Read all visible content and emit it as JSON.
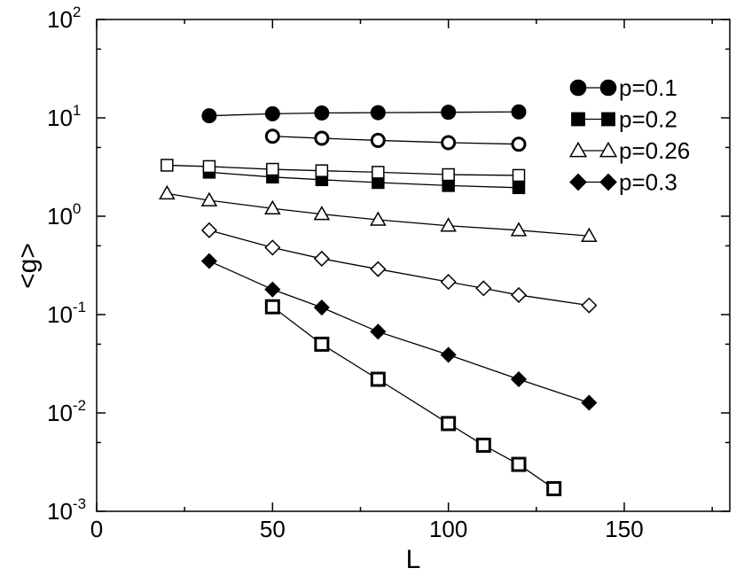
{
  "chart_data": {
    "type": "scatter",
    "title": "",
    "xlabel": "L",
    "ylabel": "<g>",
    "xlim": [
      0,
      180
    ],
    "ylim": [
      0.001,
      100
    ],
    "yscale": "log",
    "xticks": [
      {
        "value": 0,
        "label": "0"
      },
      {
        "value": 50,
        "label": "50"
      },
      {
        "value": 100,
        "label": "100"
      },
      {
        "value": 150,
        "label": "150"
      }
    ],
    "yticks": [
      {
        "value": 0.001,
        "base": "10",
        "exp": "-3"
      },
      {
        "value": 0.01,
        "base": "10",
        "exp": "-2"
      },
      {
        "value": 0.1,
        "base": "10",
        "exp": "-1"
      },
      {
        "value": 1,
        "base": "10",
        "exp": "0"
      },
      {
        "value": 10,
        "base": "10",
        "exp": "1"
      },
      {
        "value": 100,
        "base": "10",
        "exp": "2"
      }
    ],
    "legend_position": "top-right",
    "grid": false,
    "series": [
      {
        "name": "p=0.1",
        "marker": "circle",
        "filled": true,
        "legend": true,
        "x": [
          32,
          50,
          64,
          80,
          100,
          120
        ],
        "y": [
          10.5,
          11.0,
          11.2,
          11.3,
          11.4,
          11.5
        ]
      },
      {
        "marker": "circle",
        "filled": false,
        "legend": false,
        "x": [
          50,
          64,
          80,
          100,
          120
        ],
        "y": [
          6.5,
          6.2,
          5.9,
          5.6,
          5.4
        ]
      },
      {
        "name": "p=0.2",
        "marker": "square",
        "filled": true,
        "legend": true,
        "x": [
          32,
          50,
          64,
          80,
          100,
          120
        ],
        "y": [
          2.8,
          2.5,
          2.35,
          2.2,
          2.05,
          1.95
        ]
      },
      {
        "marker": "square",
        "filled": false,
        "legend": false,
        "x": [
          20,
          32,
          50,
          64,
          80,
          100,
          120
        ],
        "y": [
          3.3,
          3.2,
          3.0,
          2.9,
          2.8,
          2.65,
          2.6
        ]
      },
      {
        "name": "p=0.26",
        "marker": "triangle",
        "filled": false,
        "legend": true,
        "x": [
          20,
          32,
          50,
          64,
          80,
          100,
          120,
          140
        ],
        "y": [
          1.7,
          1.45,
          1.2,
          1.05,
          0.92,
          0.8,
          0.72,
          0.63
        ]
      },
      {
        "marker": "diamond",
        "filled": false,
        "legend": false,
        "x": [
          32,
          50,
          64,
          80,
          100,
          110,
          120,
          140
        ],
        "y": [
          0.72,
          0.48,
          0.37,
          0.29,
          0.215,
          0.185,
          0.158,
          0.124
        ]
      },
      {
        "name": "p=0.3",
        "marker": "diamond",
        "filled": true,
        "legend": true,
        "x": [
          32,
          50,
          64,
          80,
          100,
          120,
          140
        ],
        "y": [
          0.35,
          0.18,
          0.118,
          0.067,
          0.039,
          0.022,
          0.0127
        ]
      },
      {
        "marker": "square",
        "filled": false,
        "bold": true,
        "legend": false,
        "x": [
          50,
          64,
          80,
          100,
          110,
          120,
          130
        ],
        "y": [
          0.12,
          0.05,
          0.022,
          0.0078,
          0.0047,
          0.003,
          0.0017
        ]
      }
    ]
  }
}
